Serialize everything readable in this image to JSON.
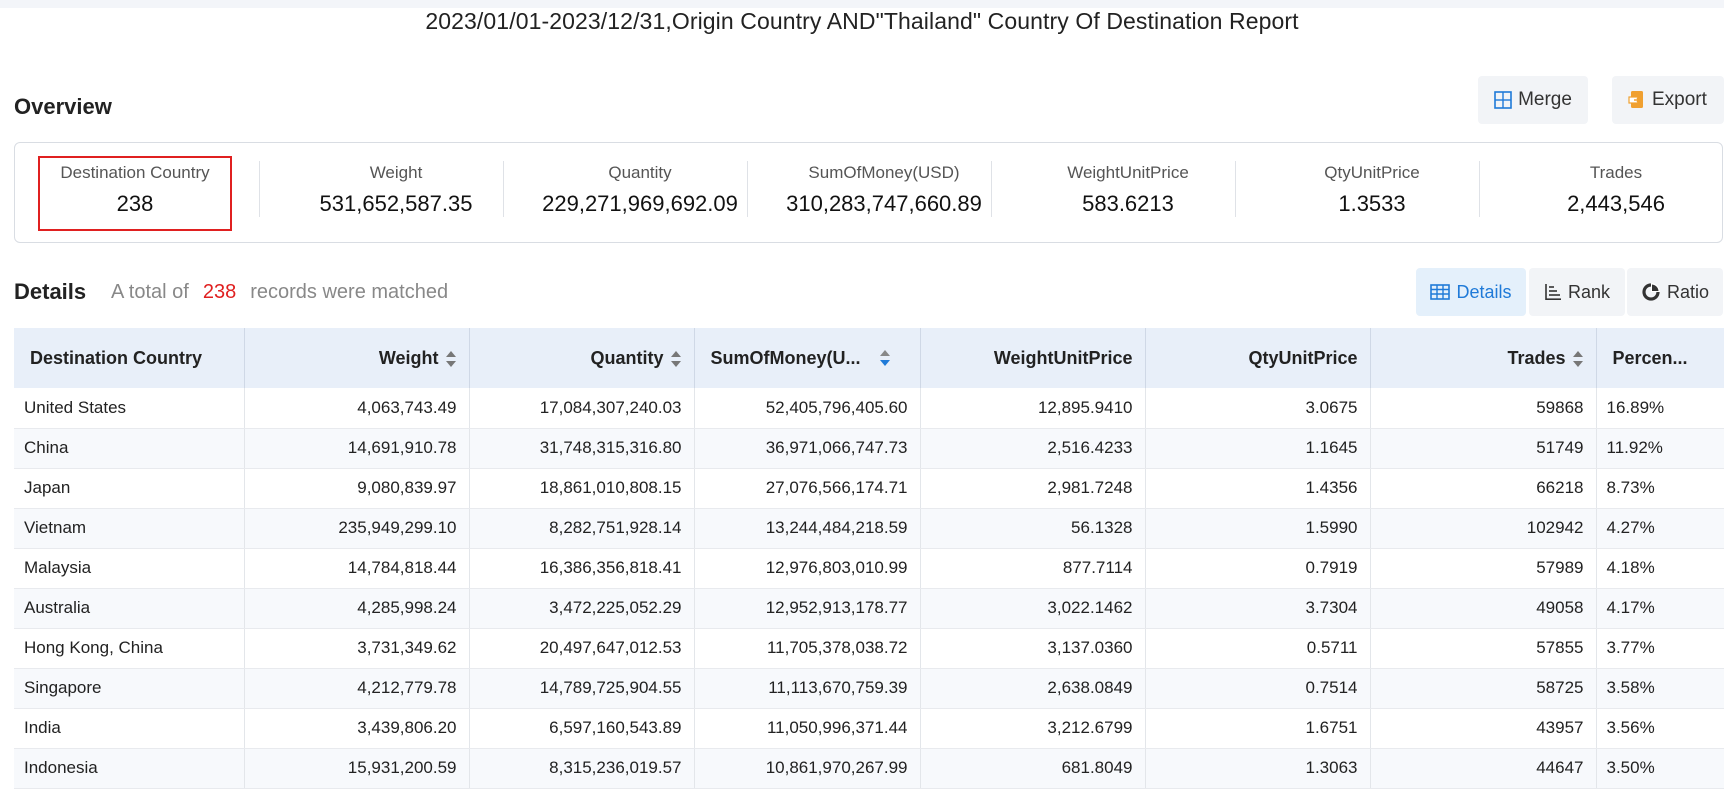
{
  "report": {
    "title": "2023/01/01-2023/12/31,Origin Country AND\"Thailand\" Country Of Destination Report"
  },
  "overview": {
    "title": "Overview",
    "merge_label": "Merge",
    "export_label": "Export",
    "stats": [
      {
        "label": "Destination Country",
        "value": "238"
      },
      {
        "label": "Weight",
        "value": "531,652,587.35"
      },
      {
        "label": "Quantity",
        "value": "229,271,969,692.09"
      },
      {
        "label": "SumOfMoney(USD)",
        "value": "310,283,747,660.89"
      },
      {
        "label": "WeightUnitPrice",
        "value": "583.6213"
      },
      {
        "label": "QtyUnitPrice",
        "value": "1.3533"
      },
      {
        "label": "Trades",
        "value": "2,443,546"
      }
    ]
  },
  "details": {
    "title": "Details",
    "summary_prefix": "A total of",
    "count": "238",
    "summary_suffix": "records were matched",
    "tabs": [
      {
        "label": "Details",
        "active": true
      },
      {
        "label": "Rank",
        "active": false
      },
      {
        "label": "Ratio",
        "active": false
      }
    ]
  },
  "table": {
    "columns": [
      "Destination Country",
      "Weight",
      "Quantity",
      "SumOfMoney(U...",
      "WeightUnitPrice",
      "QtyUnitPrice",
      "Trades",
      "Percen..."
    ],
    "rows": [
      [
        "United States",
        "4,063,743.49",
        "17,084,307,240.03",
        "52,405,796,405.60",
        "12,895.9410",
        "3.0675",
        "59868",
        "16.89%"
      ],
      [
        "China",
        "14,691,910.78",
        "31,748,315,316.80",
        "36,971,066,747.73",
        "2,516.4233",
        "1.1645",
        "51749",
        "11.92%"
      ],
      [
        "Japan",
        "9,080,839.97",
        "18,861,010,808.15",
        "27,076,566,174.71",
        "2,981.7248",
        "1.4356",
        "66218",
        "8.73%"
      ],
      [
        "Vietnam",
        "235,949,299.10",
        "8,282,751,928.14",
        "13,244,484,218.59",
        "56.1328",
        "1.5990",
        "102942",
        "4.27%"
      ],
      [
        "Malaysia",
        "14,784,818.44",
        "16,386,356,818.41",
        "12,976,803,010.99",
        "877.7114",
        "0.7919",
        "57989",
        "4.18%"
      ],
      [
        "Australia",
        "4,285,998.24",
        "3,472,225,052.29",
        "12,952,913,178.77",
        "3,022.1462",
        "3.7304",
        "49058",
        "4.17%"
      ],
      [
        "Hong Kong, China",
        "3,731,349.62",
        "20,497,647,012.53",
        "11,705,378,038.72",
        "3,137.0360",
        "0.5711",
        "57855",
        "3.77%"
      ],
      [
        "Singapore",
        "4,212,779.78",
        "14,789,725,904.55",
        "11,113,670,759.39",
        "2,638.0849",
        "0.7514",
        "58725",
        "3.58%"
      ],
      [
        "India",
        "3,439,806.20",
        "6,597,160,543.89",
        "11,050,996,371.44",
        "3,212.6799",
        "1.6751",
        "43957",
        "3.56%"
      ],
      [
        "Indonesia",
        "15,931,200.59",
        "8,315,236,019.57",
        "10,861,970,267.99",
        "681.8049",
        "1.3063",
        "44647",
        "3.50%"
      ]
    ]
  },
  "colors": {
    "accent": "#1f7ad8",
    "highlight": "#e02020",
    "header_bg": "#e8eff9"
  }
}
